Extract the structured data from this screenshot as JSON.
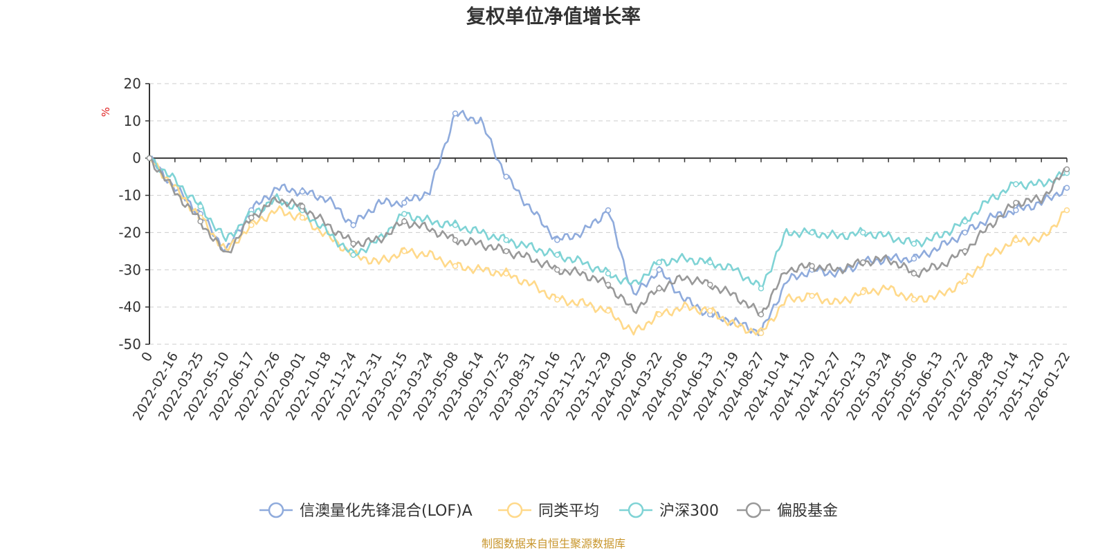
{
  "chart_data": {
    "type": "line",
    "title": "复权单位净值增长率",
    "ylabel": "%",
    "ylim": [
      -50,
      20
    ],
    "yticks": [
      20,
      10,
      0,
      -10,
      -20,
      -30,
      -40,
      -50
    ],
    "xlabels": [
      "0",
      "2022-02-16",
      "2022-03-25",
      "2022-05-10",
      "2022-06-17",
      "2022-07-26",
      "2022-09-01",
      "2022-10-18",
      "2022-11-24",
      "2022-12-31",
      "2023-02-15",
      "2023-03-24",
      "2023-05-08",
      "2023-06-14",
      "2023-07-25",
      "2023-08-31",
      "2023-10-16",
      "2023-11-22",
      "2023-12-29",
      "2024-02-06",
      "2024-03-22",
      "2024-05-06",
      "2024-06-13",
      "2024-07-19",
      "2024-08-27",
      "2024-10-14",
      "2024-11-20",
      "2024-12-27",
      "2025-02-13",
      "2025-03-24",
      "2025-05-06",
      "2025-06-13",
      "2025-07-22",
      "2025-08-28",
      "2025-10-14",
      "2025-11-20",
      "2026-01-22"
    ],
    "series": [
      {
        "name": "信澳量化先锋混合(LOF)A",
        "color": "#8fabdc",
        "values": [
          0,
          -8,
          -15,
          -25,
          -14,
          -8,
          -9,
          -11,
          -18,
          -12,
          -12,
          -9,
          12,
          10,
          -5,
          -14,
          -22,
          -20,
          -14,
          -37,
          -30,
          -38,
          -42,
          -44,
          -47,
          -33,
          -30,
          -31,
          -28,
          -27,
          -27,
          -24,
          -20,
          -16,
          -14,
          -12,
          -8
        ]
      },
      {
        "name": "同类平均",
        "color": "#ffd98a",
        "values": [
          0,
          -8,
          -16,
          -25,
          -18,
          -14,
          -16,
          -21,
          -26,
          -28,
          -25,
          -26,
          -29,
          -30,
          -31,
          -34,
          -38,
          -39,
          -41,
          -47,
          -42,
          -40,
          -41,
          -45,
          -47,
          -38,
          -37,
          -39,
          -36,
          -35,
          -38,
          -37,
          -33,
          -26,
          -22,
          -22,
          -14
        ]
      },
      {
        "name": "沪深300",
        "color": "#7fd3d5",
        "values": [
          0,
          -6,
          -13,
          -22,
          -15,
          -11,
          -14,
          -20,
          -26,
          -22,
          -15,
          -17,
          -18,
          -20,
          -22,
          -24,
          -26,
          -28,
          -31,
          -34,
          -28,
          -27,
          -28,
          -30,
          -35,
          -20,
          -20,
          -21,
          -20,
          -21,
          -23,
          -21,
          -17,
          -11,
          -7,
          -7,
          -4
        ]
      },
      {
        "name": "偏股基金",
        "color": "#999999",
        "values": [
          0,
          -9,
          -17,
          -26,
          -16,
          -11,
          -13,
          -18,
          -23,
          -22,
          -17,
          -19,
          -22,
          -23,
          -25,
          -27,
          -30,
          -31,
          -34,
          -41,
          -35,
          -32,
          -34,
          -37,
          -42,
          -30,
          -29,
          -30,
          -28,
          -27,
          -31,
          -29,
          -25,
          -18,
          -12,
          -11,
          -3
        ]
      }
    ]
  },
  "source": "制图数据来自恒生聚源数据库"
}
